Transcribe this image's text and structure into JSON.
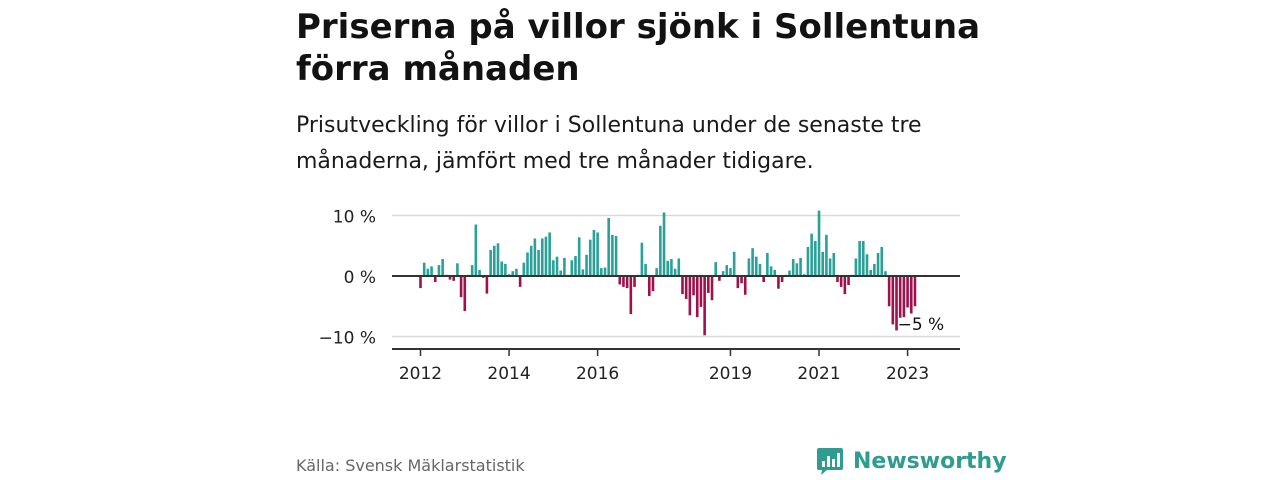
{
  "header": {
    "title": "Priserna på villor sjönk i Sollentuna förra månaden",
    "subtitle": "Prisutveckling för villor i Sollentuna under de senaste tre månaderna, jämfört med tre månader tidigare."
  },
  "footer": {
    "source": "Källa: Svensk Mäklarstatistik",
    "brand": "Newsworthy"
  },
  "colors": {
    "positive": "#2aa198",
    "negative": "#a0104a",
    "brand": "#2e9d8f"
  },
  "icons": {
    "brand_logo": "newsworthy-logo-icon"
  },
  "chart_data": {
    "type": "bar",
    "title": "",
    "xlabel": "",
    "ylabel": "",
    "ylim": [
      -10,
      10
    ],
    "yticks": [
      10,
      0,
      -10
    ],
    "ytick_labels": [
      "10 %",
      "0 %",
      "−10 %"
    ],
    "xtick_labels": [
      {
        "label": "2012",
        "period": "2012-01"
      },
      {
        "label": "2014",
        "period": "2014-01"
      },
      {
        "label": "2016",
        "period": "2016-01"
      },
      {
        "label": "2019",
        "period": "2019-01"
      },
      {
        "label": "2021",
        "period": "2021-01"
      },
      {
        "label": "2023",
        "period": "2023-01"
      }
    ],
    "grid": true,
    "annotation": {
      "text": "−5 %",
      "period": "2023-01"
    },
    "series": [
      {
        "values": [
          {
            "period": "2012-01",
            "value": -2.0
          },
          {
            "period": "2012-02",
            "value": 2.2
          },
          {
            "period": "2012-03",
            "value": 1.2
          },
          {
            "period": "2012-04",
            "value": 1.6
          },
          {
            "period": "2012-05",
            "value": -1.0
          },
          {
            "period": "2012-06",
            "value": 1.8
          },
          {
            "period": "2012-07",
            "value": 2.8
          },
          {
            "period": "2012-08",
            "value": 0.2
          },
          {
            "period": "2012-09",
            "value": -0.6
          },
          {
            "period": "2012-10",
            "value": -0.8
          },
          {
            "period": "2012-11",
            "value": 2.1
          },
          {
            "period": "2012-12",
            "value": -3.5
          },
          {
            "period": "2013-01",
            "value": -5.8
          },
          {
            "period": "2013-02",
            "value": 0.2
          },
          {
            "period": "2013-03",
            "value": 1.8
          },
          {
            "period": "2013-04",
            "value": 8.5
          },
          {
            "period": "2013-05",
            "value": 1.0
          },
          {
            "period": "2013-06",
            "value": -0.3
          },
          {
            "period": "2013-07",
            "value": -2.9
          },
          {
            "period": "2013-08",
            "value": 4.3
          },
          {
            "period": "2013-09",
            "value": 5.0
          },
          {
            "period": "2013-10",
            "value": 5.4
          },
          {
            "period": "2013-11",
            "value": 2.4
          },
          {
            "period": "2013-12",
            "value": 2.0
          },
          {
            "period": "2014-01",
            "value": 0.3
          },
          {
            "period": "2014-02",
            "value": 0.8
          },
          {
            "period": "2014-03",
            "value": 1.2
          },
          {
            "period": "2014-04",
            "value": -1.8
          },
          {
            "period": "2014-05",
            "value": 2.2
          },
          {
            "period": "2014-06",
            "value": 3.9
          },
          {
            "period": "2014-07",
            "value": 5.0
          },
          {
            "period": "2014-08",
            "value": 6.2
          },
          {
            "period": "2014-09",
            "value": 4.3
          },
          {
            "period": "2014-10",
            "value": 6.2
          },
          {
            "period": "2014-11",
            "value": 6.5
          },
          {
            "period": "2014-12",
            "value": 7.2
          },
          {
            "period": "2015-01",
            "value": 2.6
          },
          {
            "period": "2015-02",
            "value": 3.2
          },
          {
            "period": "2015-03",
            "value": 0.9
          },
          {
            "period": "2015-04",
            "value": 3.0
          },
          {
            "period": "2015-05",
            "value": 0.2
          },
          {
            "period": "2015-06",
            "value": 2.6
          },
          {
            "period": "2015-07",
            "value": 3.3
          },
          {
            "period": "2015-08",
            "value": 6.4
          },
          {
            "period": "2015-09",
            "value": 1.1
          },
          {
            "period": "2015-10",
            "value": 3.5
          },
          {
            "period": "2015-11",
            "value": 6.0
          },
          {
            "period": "2015-12",
            "value": 7.6
          },
          {
            "period": "2016-01",
            "value": 7.2
          },
          {
            "period": "2016-02",
            "value": 1.3
          },
          {
            "period": "2016-03",
            "value": 1.4
          },
          {
            "period": "2016-04",
            "value": 9.6
          },
          {
            "period": "2016-05",
            "value": 6.8
          },
          {
            "period": "2016-06",
            "value": 6.6
          },
          {
            "period": "2016-07",
            "value": -1.4
          },
          {
            "period": "2016-08",
            "value": -1.8
          },
          {
            "period": "2016-09",
            "value": -2.0
          },
          {
            "period": "2016-10",
            "value": -6.3
          },
          {
            "period": "2016-11",
            "value": -1.8
          },
          {
            "period": "2016-12",
            "value": 0.2
          },
          {
            "period": "2017-01",
            "value": 5.5
          },
          {
            "period": "2017-02",
            "value": 2.0
          },
          {
            "period": "2017-03",
            "value": -3.3
          },
          {
            "period": "2017-04",
            "value": -2.5
          },
          {
            "period": "2017-05",
            "value": 1.3
          },
          {
            "period": "2017-06",
            "value": 8.3
          },
          {
            "period": "2017-07",
            "value": 10.5
          },
          {
            "period": "2017-08",
            "value": 2.5
          },
          {
            "period": "2017-09",
            "value": 2.8
          },
          {
            "period": "2017-10",
            "value": 1.2
          },
          {
            "period": "2017-11",
            "value": 2.9
          },
          {
            "period": "2017-12",
            "value": -3.0
          },
          {
            "period": "2018-01",
            "value": -3.8
          },
          {
            "period": "2018-02",
            "value": -6.5
          },
          {
            "period": "2018-03",
            "value": -3.2
          },
          {
            "period": "2018-04",
            "value": -6.8
          },
          {
            "period": "2018-05",
            "value": -5.1
          },
          {
            "period": "2018-06",
            "value": -9.8
          },
          {
            "period": "2018-07",
            "value": -2.8
          },
          {
            "period": "2018-08",
            "value": -4.0
          },
          {
            "period": "2018-09",
            "value": 2.3
          },
          {
            "period": "2018-10",
            "value": -0.8
          },
          {
            "period": "2018-11",
            "value": 0.8
          },
          {
            "period": "2018-12",
            "value": 1.8
          },
          {
            "period": "2019-01",
            "value": 1.3
          },
          {
            "period": "2019-02",
            "value": 4.0
          },
          {
            "period": "2019-03",
            "value": -2.0
          },
          {
            "period": "2019-04",
            "value": -1.2
          },
          {
            "period": "2019-05",
            "value": -3.1
          },
          {
            "period": "2019-06",
            "value": 2.9
          },
          {
            "period": "2019-07",
            "value": 4.6
          },
          {
            "period": "2019-08",
            "value": 3.2
          },
          {
            "period": "2019-09",
            "value": 2.0
          },
          {
            "period": "2019-10",
            "value": -1.0
          },
          {
            "period": "2019-11",
            "value": 3.8
          },
          {
            "period": "2019-12",
            "value": 1.6
          },
          {
            "period": "2020-01",
            "value": 1.0
          },
          {
            "period": "2020-02",
            "value": -2.1
          },
          {
            "period": "2020-03",
            "value": -1.0
          },
          {
            "period": "2020-04",
            "value": 0.2
          },
          {
            "period": "2020-05",
            "value": 0.9
          },
          {
            "period": "2020-06",
            "value": 2.8
          },
          {
            "period": "2020-07",
            "value": 2.1
          },
          {
            "period": "2020-08",
            "value": 3.0
          },
          {
            "period": "2020-09",
            "value": 0.3
          },
          {
            "period": "2020-10",
            "value": 4.8
          },
          {
            "period": "2020-11",
            "value": 7.0
          },
          {
            "period": "2020-12",
            "value": 5.8
          },
          {
            "period": "2021-01",
            "value": 10.8
          },
          {
            "period": "2021-02",
            "value": 4.0
          },
          {
            "period": "2021-03",
            "value": 6.8
          },
          {
            "period": "2021-04",
            "value": 2.9
          },
          {
            "period": "2021-05",
            "value": 3.8
          },
          {
            "period": "2021-06",
            "value": -1.0
          },
          {
            "period": "2021-07",
            "value": -1.8
          },
          {
            "period": "2021-08",
            "value": -3.0
          },
          {
            "period": "2021-09",
            "value": -1.5
          },
          {
            "period": "2021-10",
            "value": 0.2
          },
          {
            "period": "2021-11",
            "value": 2.9
          },
          {
            "period": "2021-12",
            "value": 5.8
          },
          {
            "period": "2022-01",
            "value": 5.8
          },
          {
            "period": "2022-02",
            "value": 3.6
          },
          {
            "period": "2022-03",
            "value": 1.0
          },
          {
            "period": "2022-04",
            "value": 2.0
          },
          {
            "period": "2022-05",
            "value": 3.8
          },
          {
            "period": "2022-06",
            "value": 4.8
          },
          {
            "period": "2022-07",
            "value": 0.8
          },
          {
            "period": "2022-08",
            "value": -5.0
          },
          {
            "period": "2022-09",
            "value": -8.0
          },
          {
            "period": "2022-10",
            "value": -9.0
          },
          {
            "period": "2022-11",
            "value": -6.9
          },
          {
            "period": "2022-12",
            "value": -6.8
          },
          {
            "period": "2023-01",
            "value": -5.2
          },
          {
            "period": "2023-02",
            "value": -6.2
          },
          {
            "period": "2023-03",
            "value": -5.0
          }
        ]
      }
    ]
  }
}
